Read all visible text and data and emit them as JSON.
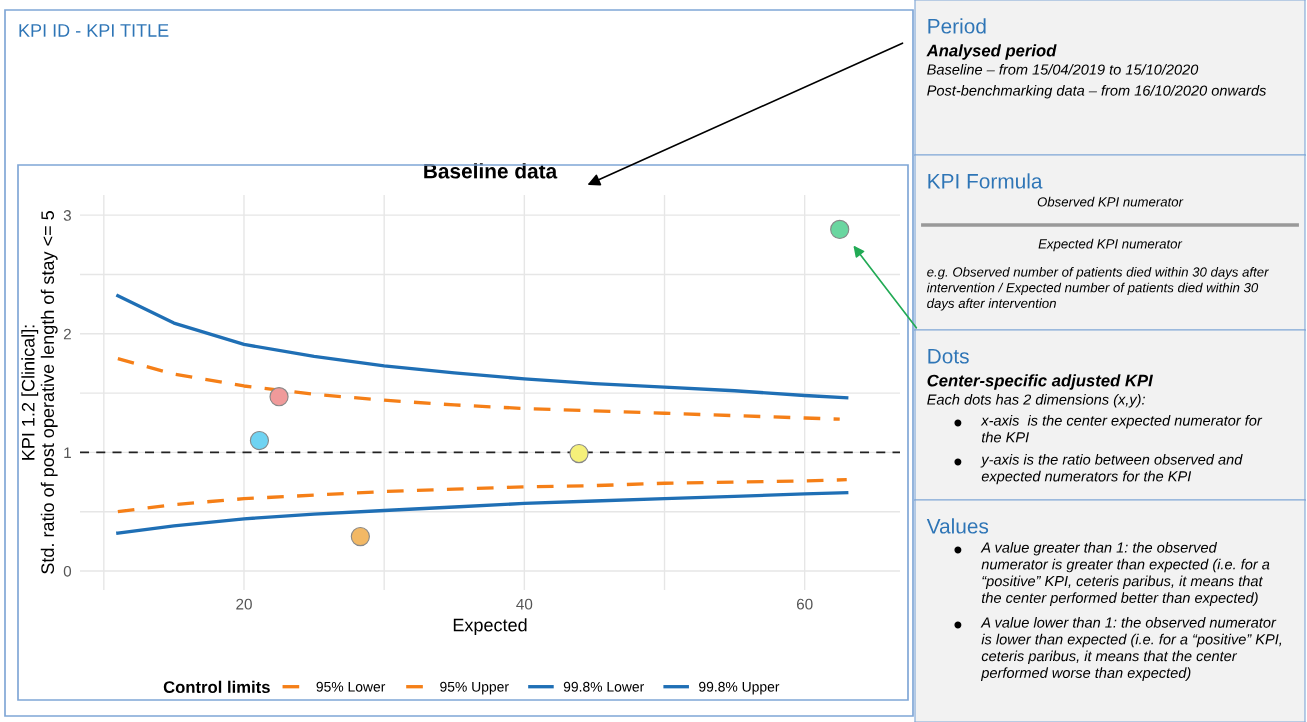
{
  "chart_data": [
    {
      "type": "scatter",
      "title": "Baseline data",
      "xlabel": "Expected",
      "ylabel": "KPI 1.2 [Clinical]:\nStd. ratio of post operative length of stay <= 5",
      "annotations": [
        "KPI ID - KPI TITLE"
      ],
      "xlim": [
        8.3,
        66.8
      ],
      "ylim": [
        -0.16,
        3.17
      ],
      "xticks": [
        {
          "value": 10,
          "label": null
        },
        20,
        {
          "value": 30,
          "label": null
        },
        40,
        {
          "value": 50,
          "label": null
        },
        60
      ],
      "yticks": [
        0,
        {
          "value": 0.5,
          "label": null
        },
        1,
        {
          "value": 1.5,
          "label": null
        },
        2,
        {
          "value": 2.5,
          "label": null
        },
        3
      ],
      "grid": true,
      "legend": "bottom",
      "legend_title": "Control limits",
      "ref_lines": [
        {
          "axis": "y",
          "value": 1,
          "label": null,
          "color": "#222222",
          "line_style": "dashed"
        }
      ],
      "series": [
        {
          "name": "95% Lower",
          "type": "line",
          "color": "#f57f17",
          "line_style": "dashed",
          "marker": "none",
          "x": [
            11,
            15,
            20,
            25,
            30,
            35,
            40,
            45,
            50,
            55,
            60,
            63
          ],
          "values": [
            0.5,
            0.56,
            0.61,
            0.64,
            0.67,
            0.69,
            0.71,
            0.72,
            0.74,
            0.75,
            0.76,
            0.77
          ]
        },
        {
          "name": "95% Upper",
          "type": "line",
          "color": "#f57f17",
          "line_style": "dashed",
          "marker": "none",
          "x": [
            11,
            15,
            20,
            25,
            30,
            35,
            40,
            45,
            50,
            55,
            60,
            62.5
          ],
          "values": [
            1.79,
            1.66,
            1.56,
            1.49,
            1.44,
            1.4,
            1.37,
            1.35,
            1.33,
            1.31,
            1.29,
            1.28
          ]
        },
        {
          "name": "99.8% Lower",
          "type": "line",
          "color": "#1f6fb5",
          "line_style": "solid",
          "marker": "none",
          "x": [
            11,
            15,
            20,
            25,
            30,
            35,
            40,
            45,
            50,
            55,
            60,
            63
          ],
          "values": [
            0.32,
            0.38,
            0.44,
            0.48,
            0.51,
            0.54,
            0.57,
            0.59,
            0.61,
            0.63,
            0.65,
            0.66
          ]
        },
        {
          "name": "99.8% Upper",
          "type": "line",
          "color": "#1f6fb5",
          "line_style": "solid",
          "marker": "none",
          "x": [
            11,
            15,
            20,
            25,
            30,
            35,
            40,
            45,
            50,
            55,
            60,
            63
          ],
          "values": [
            2.32,
            2.09,
            1.91,
            1.81,
            1.73,
            1.67,
            1.62,
            1.58,
            1.55,
            1.52,
            1.48,
            1.46
          ]
        },
        {
          "type": "scatter",
          "marker": "circle",
          "x": [
            21.1,
            22.5,
            28.3,
            43.9,
            62.5
          ],
          "values": [
            1.1,
            1.47,
            0.29,
            0.99,
            2.88
          ],
          "colors": [
            "#6fd3f2",
            "#f09a9a",
            "#f2b865",
            "#f5f07a",
            "#6ad6a0"
          ]
        }
      ]
    },
    {
      "type": "other",
      "title": "Period",
      "subtitle": "Analysed period",
      "annotations": [
        "Baseline – from 15/04/2019 to 15/10/2020",
        "Post-benchmarking data – from 16/10/2020 onwards"
      ]
    },
    {
      "type": "other",
      "title": "KPI Formula",
      "annotations": [
        "Observed KPI numerator",
        "Expected KPI numerator",
        "e.g. Observed number of patients died within 30 days after\nintervention / Expected number of patients died within 30\ndays after intervention"
      ]
    },
    {
      "type": "other",
      "title": "Dots",
      "subtitle": "Center-specific adjusted KPI",
      "annotations": [
        "Each dots has 2 dimensions (x,y):",
        "x-axis  is the center expected numerator for\nthe KPI",
        "y-axis is the ratio between observed and\nexpected numerators for the KPI"
      ]
    },
    {
      "type": "other",
      "title": "Values",
      "annotations": [
        "A value greater than 1: the observed\nnumerator is greater than expected (i.e. for a\n“positive” KPI, ceteris paribus, it means that\nthe center performed better than expected)",
        "A value lower than 1: the observed numerator\nis lower than expected (i.e. for a “positive” KPI,\nceteris paribus, it means that the center\nperformed worse than expected)"
      ]
    }
  ]
}
